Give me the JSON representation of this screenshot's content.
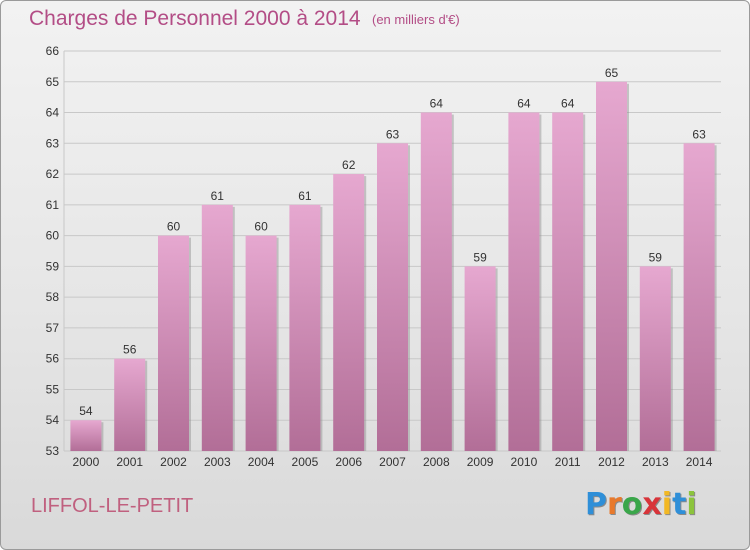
{
  "header": {
    "title": "Charges de Personnel 2000 à 2014",
    "subtitle": "(en milliers d'€)"
  },
  "footer": {
    "commune": "LIFFOL-LE-PETIT",
    "logo_letters": [
      "P",
      "r",
      "o",
      "x",
      "i",
      "t",
      "i"
    ],
    "logo_colors": [
      "#2f8fd8",
      "#e8792c",
      "#3aa64a",
      "#d8343a",
      "#f2b824",
      "#2f8fd8",
      "#8cc43c"
    ]
  },
  "colors": {
    "bar_top": "#e6a8d0",
    "bar_bottom": "#b26e97",
    "bar_shadow": "#8f8f8f",
    "grid": "#c8c8c8",
    "axis_text": "#333333"
  },
  "chart_data": {
    "type": "bar",
    "title": "Charges de Personnel 2000 à 2014",
    "subtitle": "(en milliers d'€)",
    "xlabel": "",
    "ylabel": "",
    "categories": [
      "2000",
      "2001",
      "2002",
      "2003",
      "2004",
      "2005",
      "2006",
      "2007",
      "2008",
      "2009",
      "2010",
      "2011",
      "2012",
      "2013",
      "2014"
    ],
    "values": [
      54,
      56,
      60,
      61,
      60,
      61,
      62,
      63,
      64,
      59,
      64,
      64,
      65,
      59,
      63
    ],
    "ylim": [
      53,
      66
    ],
    "yticks": [
      53,
      54,
      55,
      56,
      57,
      58,
      59,
      60,
      61,
      62,
      63,
      64,
      65,
      66
    ],
    "grid": true,
    "data_labels": true
  }
}
